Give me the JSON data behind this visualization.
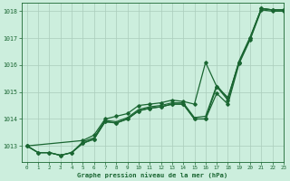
{
  "title": "Graphe pression niveau de la mer (hPa)",
  "bg_color": "#cceedd",
  "grid_color": "#aaccbb",
  "line_color": "#1a6632",
  "xlim": [
    -0.5,
    23
  ],
  "ylim": [
    1012.4,
    1018.3
  ],
  "yticks": [
    1013,
    1014,
    1015,
    1016,
    1017,
    1018
  ],
  "xticks": [
    0,
    1,
    2,
    3,
    4,
    5,
    6,
    7,
    8,
    9,
    10,
    11,
    12,
    13,
    14,
    15,
    16,
    17,
    18,
    19,
    20,
    21,
    22,
    23
  ],
  "series": [
    {
      "x": [
        0,
        1,
        2,
        3,
        4,
        5,
        6,
        7,
        8,
        9,
        10,
        11,
        12,
        13,
        14,
        15,
        16,
        17,
        18,
        19,
        20,
        21,
        22,
        23
      ],
      "y": [
        1013.0,
        1012.75,
        1012.75,
        1012.65,
        1012.75,
        1013.1,
        1013.25,
        1013.9,
        1013.85,
        1014.0,
        1014.3,
        1014.4,
        1014.45,
        1014.55,
        1014.55,
        1014.0,
        1014.0,
        1014.95,
        1014.55,
        1016.05,
        1016.95,
        1018.05,
        1018.0,
        1018.0
      ],
      "marker": true,
      "lw": 0.9
    },
    {
      "x": [
        0,
        1,
        2,
        3,
        4,
        5,
        6,
        7,
        8,
        9,
        10,
        11,
        12,
        13,
        14,
        15,
        16,
        17,
        18,
        19,
        20,
        21,
        22,
        23
      ],
      "y": [
        1013.0,
        1012.75,
        1012.75,
        1012.65,
        1012.75,
        1013.1,
        1013.25,
        1013.9,
        1013.85,
        1014.0,
        1014.3,
        1014.4,
        1014.45,
        1014.55,
        1014.55,
        1014.0,
        1014.0,
        1015.2,
        1014.7,
        1016.1,
        1017.0,
        1018.1,
        1018.05,
        1018.05
      ],
      "marker": true,
      "lw": 0.9
    },
    {
      "x": [
        0,
        1,
        2,
        3,
        4,
        5,
        6,
        7,
        8,
        9,
        10,
        11,
        12,
        13,
        14,
        15,
        16,
        17,
        18,
        19,
        20,
        21,
        22,
        23
      ],
      "y": [
        1013.0,
        1012.75,
        1012.75,
        1012.65,
        1012.75,
        1013.15,
        1013.3,
        1013.95,
        1013.9,
        1014.05,
        1014.35,
        1014.45,
        1014.5,
        1014.6,
        1014.6,
        1014.05,
        1014.1,
        1015.25,
        1014.75,
        1016.15,
        1017.05,
        1018.1,
        1018.05,
        1018.05
      ],
      "marker": false,
      "lw": 0.9
    },
    {
      "x": [
        0,
        5,
        6,
        7,
        8,
        9,
        10,
        11,
        12,
        13,
        14,
        15,
        16,
        17,
        18,
        19,
        20,
        21,
        22,
        23
      ],
      "y": [
        1013.0,
        1013.2,
        1013.4,
        1014.0,
        1014.1,
        1014.2,
        1014.5,
        1014.55,
        1014.6,
        1014.7,
        1014.65,
        1014.55,
        1016.1,
        1015.2,
        1014.8,
        1016.1,
        1017.0,
        1018.1,
        1018.05,
        1018.05
      ],
      "marker": true,
      "lw": 0.9
    }
  ]
}
